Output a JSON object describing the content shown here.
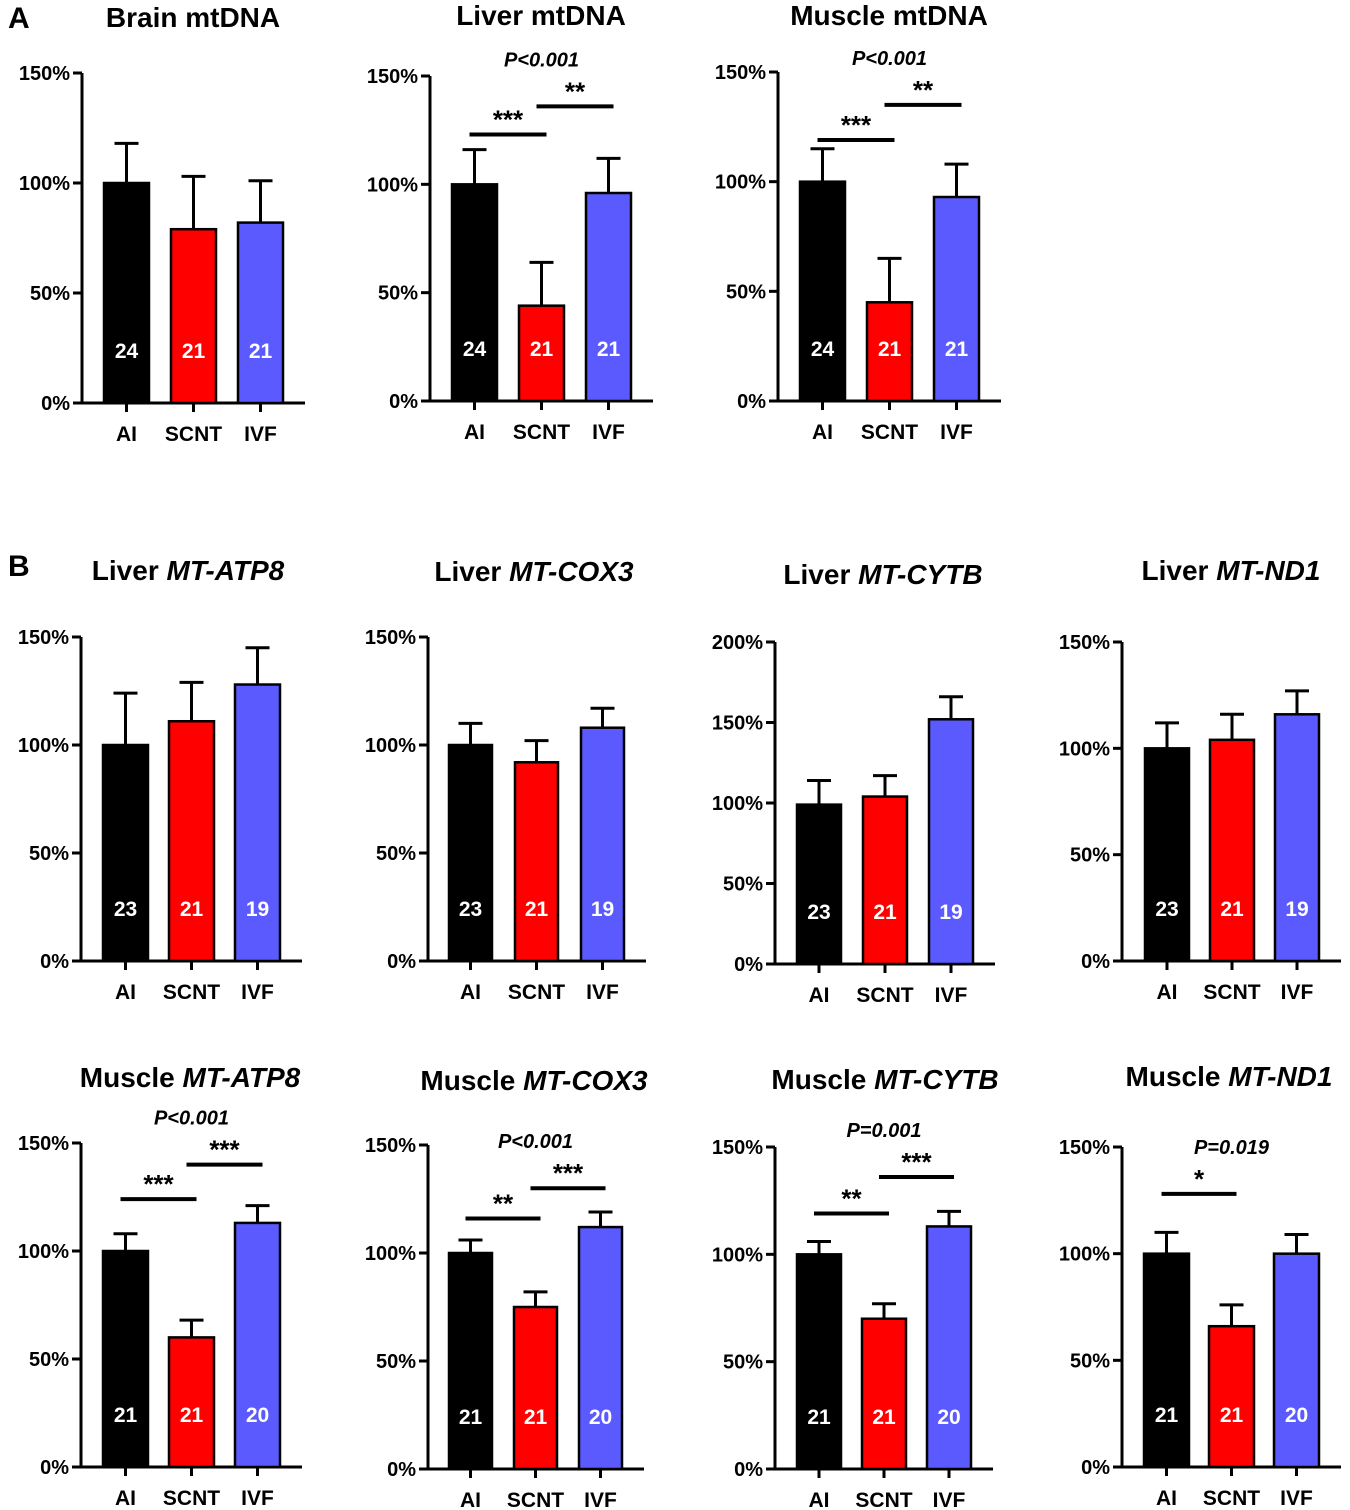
{
  "panel_labels": [
    "A",
    "B"
  ],
  "colors": {
    "AI": "#000000",
    "SCNT": "#ff0000",
    "IVF": "#5a5aff"
  },
  "chart_data": [
    {
      "id": "brain-mtdna",
      "type": "bar",
      "title": "Brain mtDNA",
      "title_prefix": "Brain",
      "title_gene": "mtDNA",
      "gene_italic": false,
      "categories": [
        "AI",
        "SCNT",
        "IVF"
      ],
      "values": [
        100,
        79,
        82
      ],
      "errors": [
        18,
        24,
        19
      ],
      "n": [
        "24",
        "21",
        "21"
      ],
      "ylim": [
        0,
        150
      ],
      "yticks": [
        0,
        50,
        100,
        150
      ],
      "ytick_labels": [
        "0%",
        "50%",
        "100%",
        "150%"
      ],
      "p_value": null,
      "significance": []
    },
    {
      "id": "liver-mtdna",
      "type": "bar",
      "title": "Liver mtDNA",
      "title_prefix": "Liver",
      "title_gene": "mtDNA",
      "gene_italic": false,
      "categories": [
        "AI",
        "SCNT",
        "IVF"
      ],
      "values": [
        100,
        44,
        96
      ],
      "errors": [
        16,
        20,
        16
      ],
      "n": [
        "24",
        "21",
        "21"
      ],
      "ylim": [
        0,
        150
      ],
      "yticks": [
        0,
        50,
        100,
        150
      ],
      "ytick_labels": [
        "0%",
        "50%",
        "100%",
        "150%"
      ],
      "p_value": "P<0.001",
      "significance": [
        {
          "from": 0,
          "to": 1,
          "label": "***",
          "y": 123
        },
        {
          "from": 1,
          "to": 2,
          "label": "**",
          "y": 136
        }
      ]
    },
    {
      "id": "muscle-mtdna",
      "type": "bar",
      "title": "Muscle mtDNA",
      "title_prefix": "Muscle",
      "title_gene": "mtDNA",
      "gene_italic": false,
      "categories": [
        "AI",
        "SCNT",
        "IVF"
      ],
      "values": [
        100,
        45,
        93
      ],
      "errors": [
        15,
        20,
        15
      ],
      "n": [
        "24",
        "21",
        "21"
      ],
      "ylim": [
        0,
        150
      ],
      "yticks": [
        0,
        50,
        100,
        150
      ],
      "ytick_labels": [
        "0%",
        "50%",
        "100%",
        "150%"
      ],
      "p_value": "P<0.001",
      "significance": [
        {
          "from": 0,
          "to": 1,
          "label": "***",
          "y": 119
        },
        {
          "from": 1,
          "to": 2,
          "label": "**",
          "y": 135
        }
      ]
    },
    {
      "id": "liver-mt-atp8",
      "type": "bar",
      "title": "Liver MT-ATP8",
      "title_prefix": "Liver",
      "title_gene": "MT-ATP8",
      "gene_italic": true,
      "categories": [
        "AI",
        "SCNT",
        "IVF"
      ],
      "values": [
        100,
        111,
        128
      ],
      "errors": [
        24,
        18,
        17
      ],
      "n": [
        "23",
        "21",
        "19"
      ],
      "ylim": [
        0,
        150
      ],
      "yticks": [
        0,
        50,
        100,
        150
      ],
      "ytick_labels": [
        "0%",
        "50%",
        "100%",
        "150%"
      ],
      "p_value": null,
      "significance": []
    },
    {
      "id": "liver-mt-cox3",
      "type": "bar",
      "title": "Liver MT-COX3",
      "title_prefix": "Liver",
      "title_gene": "MT-COX3",
      "gene_italic": true,
      "categories": [
        "AI",
        "SCNT",
        "IVF"
      ],
      "values": [
        100,
        92,
        108
      ],
      "errors": [
        10,
        10,
        9
      ],
      "n": [
        "23",
        "21",
        "19"
      ],
      "ylim": [
        0,
        150
      ],
      "yticks": [
        0,
        50,
        100,
        150
      ],
      "ytick_labels": [
        "0%",
        "50%",
        "100%",
        "150%"
      ],
      "p_value": null,
      "significance": []
    },
    {
      "id": "liver-mt-cytb",
      "type": "bar",
      "title": "Liver MT-CYTB",
      "title_prefix": "Liver",
      "title_gene": "MT-CYTB",
      "gene_italic": true,
      "categories": [
        "AI",
        "SCNT",
        "IVF"
      ],
      "values": [
        99,
        104,
        152
      ],
      "errors": [
        15,
        13,
        14
      ],
      "n": [
        "23",
        "21",
        "19"
      ],
      "ylim": [
        0,
        200
      ],
      "yticks": [
        0,
        50,
        100,
        150,
        200
      ],
      "ytick_labels": [
        "0%",
        "50%",
        "100%",
        "150%",
        "200%"
      ],
      "p_value": null,
      "significance": []
    },
    {
      "id": "liver-mt-nd1",
      "type": "bar",
      "title": "Liver MT-ND1",
      "title_prefix": "Liver",
      "title_gene": "MT-ND1",
      "gene_italic": true,
      "categories": [
        "AI",
        "SCNT",
        "IVF"
      ],
      "values": [
        100,
        104,
        116
      ],
      "errors": [
        12,
        12,
        11
      ],
      "n": [
        "23",
        "21",
        "19"
      ],
      "ylim": [
        0,
        150
      ],
      "yticks": [
        0,
        50,
        100,
        150
      ],
      "ytick_labels": [
        "0%",
        "50%",
        "100%",
        "150%"
      ],
      "p_value": null,
      "significance": []
    },
    {
      "id": "muscle-mt-atp8",
      "type": "bar",
      "title": "Muscle MT-ATP8",
      "title_prefix": "Muscle",
      "title_gene": "MT-ATP8",
      "gene_italic": true,
      "categories": [
        "AI",
        "SCNT",
        "IVF"
      ],
      "values": [
        100,
        60,
        113
      ],
      "errors": [
        8,
        8,
        8
      ],
      "n": [
        "21",
        "21",
        "20"
      ],
      "ylim": [
        0,
        150
      ],
      "yticks": [
        0,
        50,
        100,
        150
      ],
      "ytick_labels": [
        "0%",
        "50%",
        "100%",
        "150%"
      ],
      "p_value": "P<0.001",
      "significance": [
        {
          "from": 0,
          "to": 1,
          "label": "***",
          "y": 124
        },
        {
          "from": 1,
          "to": 2,
          "label": "***",
          "y": 140
        }
      ]
    },
    {
      "id": "muscle-mt-cox3",
      "type": "bar",
      "title": "Muscle MT-COX3",
      "title_prefix": "Muscle",
      "title_gene": "MT-COX3",
      "gene_italic": true,
      "categories": [
        "AI",
        "SCNT",
        "IVF"
      ],
      "values": [
        100,
        75,
        112
      ],
      "errors": [
        6,
        7,
        7
      ],
      "n": [
        "21",
        "21",
        "20"
      ],
      "ylim": [
        0,
        150
      ],
      "yticks": [
        0,
        50,
        100,
        150
      ],
      "ytick_labels": [
        "0%",
        "50%",
        "100%",
        "150%"
      ],
      "p_value": "P<0.001",
      "significance": [
        {
          "from": 0,
          "to": 1,
          "label": "**",
          "y": 116
        },
        {
          "from": 1,
          "to": 2,
          "label": "***",
          "y": 130
        }
      ]
    },
    {
      "id": "muscle-mt-cytb",
      "type": "bar",
      "title": "Muscle MT-CYTB",
      "title_prefix": "Muscle",
      "title_gene": "MT-CYTB",
      "gene_italic": true,
      "categories": [
        "AI",
        "SCNT",
        "IVF"
      ],
      "values": [
        100,
        70,
        113
      ],
      "errors": [
        6,
        7,
        7
      ],
      "n": [
        "21",
        "21",
        "20"
      ],
      "ylim": [
        0,
        150
      ],
      "yticks": [
        0,
        50,
        100,
        150
      ],
      "ytick_labels": [
        "0%",
        "50%",
        "100%",
        "150%"
      ],
      "p_value": "P=0.001",
      "significance": [
        {
          "from": 0,
          "to": 1,
          "label": "**",
          "y": 119
        },
        {
          "from": 1,
          "to": 2,
          "label": "***",
          "y": 136
        }
      ]
    },
    {
      "id": "muscle-mt-nd1",
      "type": "bar",
      "title": "Muscle MT-ND1",
      "title_prefix": "Muscle",
      "title_gene": "MT-ND1",
      "gene_italic": true,
      "categories": [
        "AI",
        "SCNT",
        "IVF"
      ],
      "values": [
        100,
        66,
        100
      ],
      "errors": [
        10,
        10,
        9
      ],
      "n": [
        "21",
        "21",
        "20"
      ],
      "ylim": [
        0,
        150
      ],
      "yticks": [
        0,
        50,
        100,
        150
      ],
      "ytick_labels": [
        "0%",
        "50%",
        "100%",
        "150%"
      ],
      "p_value": "P=0.019",
      "significance": [
        {
          "from": 0,
          "to": 1,
          "label": "*",
          "y": 128
        }
      ]
    }
  ]
}
